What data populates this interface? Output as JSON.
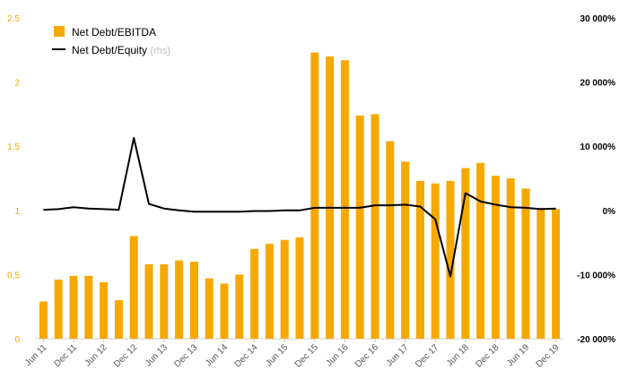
{
  "chart_data": {
    "type": "bar+line",
    "categories": [
      "Jun 11",
      "Sep 11",
      "Dec 11",
      "Mar 12",
      "Jun 12",
      "Sep 12",
      "Dec 12",
      "Mar 13",
      "Jun 13",
      "Sep 13",
      "Dec 13",
      "Mar 14",
      "Jun 14",
      "Sep 14",
      "Dec 14",
      "Mar 15",
      "Jun 15",
      "Sep 15",
      "Dec 15",
      "Mar 16",
      "Jun 16",
      "Sep 16",
      "Dec 16",
      "Mar 17",
      "Jun 17",
      "Sep 17",
      "Dec 17",
      "Mar 18",
      "Jun 18",
      "Sep 18",
      "Dec 18",
      "Mar 19",
      "Jun 19",
      "Sep 19",
      "Dec 19"
    ],
    "x_tick_labels": [
      "Jun 11",
      "Dec 11",
      "Jun 12",
      "Dec 12",
      "Jun 13",
      "Dec 13",
      "Jun 14",
      "Dec 14",
      "Jun 15",
      "Dec 15",
      "Jun 16",
      "Dec 16",
      "Jun 17",
      "Dec 17",
      "Jun 18",
      "Dec 18",
      "Jun 19",
      "Dec 19"
    ],
    "series": [
      {
        "name": "Net Debt/EBITDA",
        "type": "bar",
        "axis": "left",
        "color": "#f5a800",
        "values": [
          0.29,
          0.46,
          0.49,
          0.49,
          0.44,
          0.3,
          0.8,
          0.58,
          0.58,
          0.61,
          0.6,
          0.47,
          0.43,
          0.5,
          0.7,
          0.74,
          0.77,
          0.79,
          2.23,
          2.2,
          2.17,
          1.74,
          1.75,
          1.54,
          1.38,
          1.23,
          1.21,
          1.23,
          1.33,
          1.37,
          1.27,
          1.25,
          1.17,
          1.02,
          1.01
        ]
      },
      {
        "name": "Net Debt/Equity",
        "type": "line",
        "axis": "right",
        "color": "#000000",
        "values": [
          0.1,
          0.2,
          0.5,
          0.3,
          0.2,
          0.1,
          11.3,
          1.0,
          0.3,
          0.0,
          -0.2,
          -0.2,
          -0.2,
          -0.2,
          -0.1,
          -0.1,
          0.0,
          0.0,
          0.4,
          0.4,
          0.4,
          0.4,
          0.8,
          0.8,
          0.9,
          0.6,
          -1.4,
          -10.3,
          2.7,
          1.4,
          0.9,
          0.5,
          0.4,
          0.2,
          0.3
        ]
      }
    ],
    "legend": [
      {
        "label": "Net Debt/EBITDA",
        "note": ""
      },
      {
        "label": "Net Debt/Equity",
        "note": "(rhs)"
      }
    ],
    "legend_position": "top-left",
    "y_left": {
      "min": 0,
      "max": 2.5,
      "ticks": [
        "0",
        "0.5",
        "1",
        "1.5",
        "2",
        "2.5"
      ],
      "tick_values": [
        0,
        0.5,
        1,
        1.5,
        2,
        2.5
      ],
      "color": "#f5a800"
    },
    "y_right": {
      "min": -20,
      "max": 30,
      "ticks": [
        "-20 000%",
        "-10 000%",
        "0%",
        "10 000%",
        "20 000%",
        "30 000%"
      ],
      "tick_values": [
        -20,
        -10,
        0,
        10,
        20,
        30
      ],
      "color": "#000000"
    },
    "title": "",
    "xlabel": "",
    "ylabel": "",
    "grid": false
  }
}
